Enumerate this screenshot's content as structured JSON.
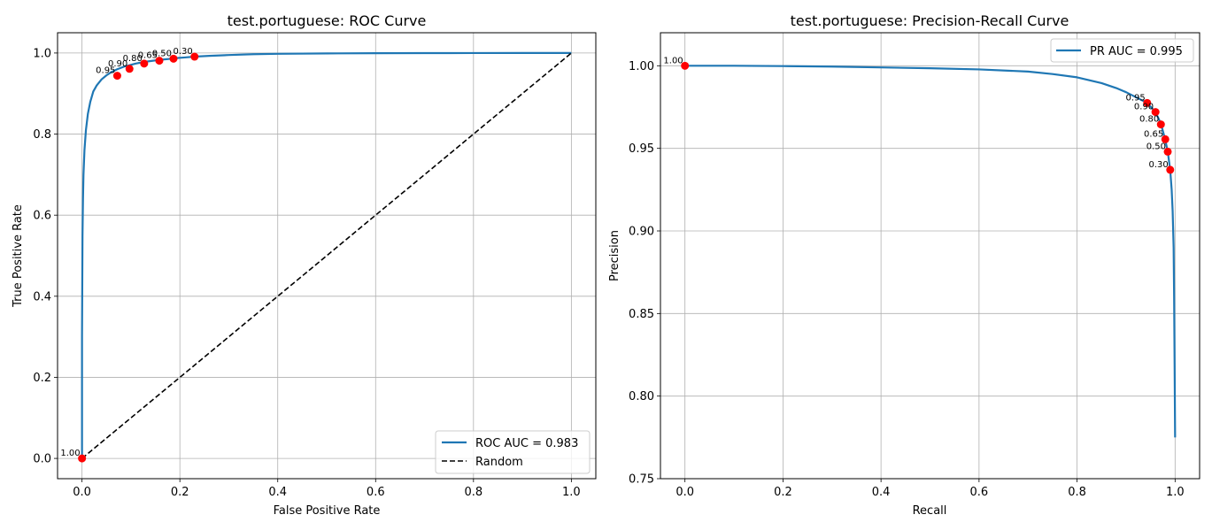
{
  "chart_data": [
    {
      "type": "line",
      "title": "test.portuguese: ROC Curve",
      "xlabel": "False Positive Rate",
      "ylabel": "True Positive Rate",
      "xlim": [
        -0.05,
        1.05
      ],
      "ylim": [
        -0.05,
        1.05
      ],
      "xticks": [
        0.0,
        0.2,
        0.4,
        0.6,
        0.8,
        1.0
      ],
      "yticks": [
        0.0,
        0.2,
        0.4,
        0.6,
        0.8,
        1.0
      ],
      "tick_labels_x": [
        "0.0",
        "0.2",
        "0.4",
        "0.6",
        "0.8",
        "1.0"
      ],
      "tick_labels_y": [
        "0.0",
        "0.2",
        "0.4",
        "0.6",
        "0.8",
        "1.0"
      ],
      "grid": true,
      "legend_position": "lower-right",
      "series": [
        {
          "name": "ROC AUC = 0.983",
          "color": "#1f77b4",
          "style": "solid",
          "x": [
            0,
            0,
            0.001,
            0.002,
            0.003,
            0.005,
            0.008,
            0.012,
            0.017,
            0.023,
            0.03,
            0.04,
            0.05,
            0.06,
            0.072,
            0.085,
            0.097,
            0.11,
            0.127,
            0.145,
            0.158,
            0.175,
            0.187,
            0.21,
            0.23,
            0.26,
            0.3,
            0.35,
            0.4,
            0.5,
            0.6,
            0.7,
            0.8,
            0.9,
            1.0
          ],
          "y": [
            0,
            0.3,
            0.55,
            0.64,
            0.7,
            0.76,
            0.81,
            0.85,
            0.88,
            0.905,
            0.92,
            0.935,
            0.945,
            0.953,
            0.96,
            0.966,
            0.97,
            0.974,
            0.978,
            0.981,
            0.983,
            0.985,
            0.987,
            0.989,
            0.991,
            0.993,
            0.995,
            0.997,
            0.998,
            0.999,
            0.9995,
            0.9998,
            0.9999,
            1.0,
            1.0
          ]
        },
        {
          "name": "Random",
          "color": "#000000",
          "style": "dashed",
          "x": [
            0,
            1
          ],
          "y": [
            0,
            1
          ]
        }
      ],
      "threshold_points": [
        {
          "label": "1.00",
          "x": 0.0,
          "y": 0.0
        },
        {
          "label": "0.95",
          "x": 0.072,
          "y": 0.944
        },
        {
          "label": "0.90",
          "x": 0.097,
          "y": 0.961
        },
        {
          "label": "0.80",
          "x": 0.127,
          "y": 0.974
        },
        {
          "label": "0.65",
          "x": 0.158,
          "y": 0.981
        },
        {
          "label": "0.50",
          "x": 0.187,
          "y": 0.986
        },
        {
          "label": "0.30",
          "x": 0.23,
          "y": 0.991
        }
      ]
    },
    {
      "type": "line",
      "title": "test.portuguese: Precision-Recall Curve",
      "xlabel": "Recall",
      "ylabel": "Precision",
      "xlim": [
        -0.05,
        1.05
      ],
      "ylim": [
        0.75,
        1.02
      ],
      "xticks": [
        0.0,
        0.2,
        0.4,
        0.6,
        0.8,
        1.0
      ],
      "yticks": [
        0.75,
        0.8,
        0.85,
        0.9,
        0.95,
        1.0
      ],
      "tick_labels_x": [
        "0.0",
        "0.2",
        "0.4",
        "0.6",
        "0.8",
        "1.0"
      ],
      "tick_labels_y": [
        "0.75",
        "0.80",
        "0.85",
        "0.90",
        "0.95",
        "1.00"
      ],
      "grid": true,
      "legend_position": "upper-right",
      "series": [
        {
          "name": "PR AUC = 0.995",
          "color": "#1f77b4",
          "style": "solid",
          "x": [
            0,
            0.1,
            0.2,
            0.3,
            0.4,
            0.5,
            0.6,
            0.7,
            0.75,
            0.8,
            0.85,
            0.88,
            0.9,
            0.92,
            0.943,
            0.96,
            0.971,
            0.98,
            0.985,
            0.99,
            0.993,
            0.995,
            0.997,
            0.998,
            0.999,
            1.0
          ],
          "y": [
            1.0,
            1.0,
            0.9998,
            0.9995,
            0.999,
            0.9985,
            0.9978,
            0.9965,
            0.995,
            0.993,
            0.9895,
            0.9865,
            0.984,
            0.981,
            0.9775,
            0.972,
            0.965,
            0.955,
            0.948,
            0.937,
            0.925,
            0.912,
            0.89,
            0.86,
            0.82,
            0.775
          ]
        }
      ],
      "threshold_points": [
        {
          "label": "1.00",
          "x": 0.0,
          "y": 1.0
        },
        {
          "label": "0.95",
          "x": 0.943,
          "y": 0.9775
        },
        {
          "label": "0.90",
          "x": 0.96,
          "y": 0.972
        },
        {
          "label": "0.80",
          "x": 0.971,
          "y": 0.9645
        },
        {
          "label": "0.65",
          "x": 0.98,
          "y": 0.9555
        },
        {
          "label": "0.50",
          "x": 0.985,
          "y": 0.948
        },
        {
          "label": "0.30",
          "x": 0.99,
          "y": 0.937
        }
      ]
    }
  ]
}
